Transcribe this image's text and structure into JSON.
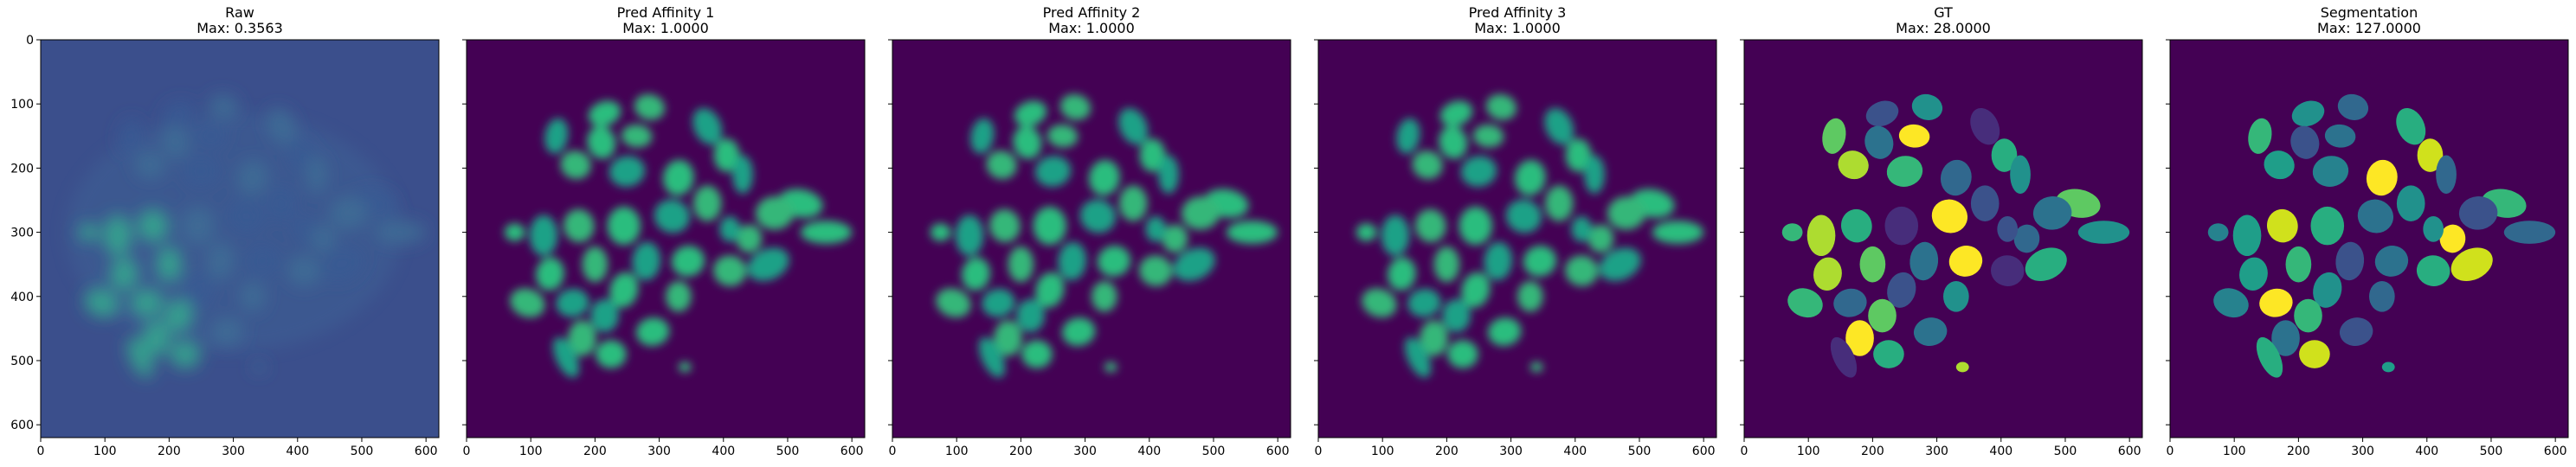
{
  "panels": [
    {
      "id": "raw",
      "title": "Raw",
      "subtitle": "Max: 0.3563",
      "kind": "raw",
      "background": "#3b4f8c",
      "colors": [
        "#3a5a93",
        "#3f6e96",
        "#33b08d",
        "#5ab88a"
      ]
    },
    {
      "id": "pred-affinity-1",
      "title": "Pred Affinity 1",
      "subtitle": "Max: 1.0000",
      "kind": "affinity",
      "background": "#440154",
      "colors": [
        "#2bbd7e",
        "#35b779",
        "#1fa187"
      ]
    },
    {
      "id": "pred-affinity-2",
      "title": "Pred Affinity 2",
      "subtitle": "Max: 1.0000",
      "kind": "affinity",
      "background": "#440154",
      "colors": [
        "#2bbd7e",
        "#35b779",
        "#1fa187"
      ]
    },
    {
      "id": "pred-affinity-3",
      "title": "Pred Affinity 3",
      "subtitle": "Max: 1.0000",
      "kind": "affinity",
      "background": "#440154",
      "colors": [
        "#2bbd7e",
        "#35b779",
        "#1fa187"
      ]
    },
    {
      "id": "gt",
      "title": "GT",
      "subtitle": "Max: 28.0000",
      "kind": "labels",
      "background": "#440154",
      "colors": [
        "#3b528b",
        "#21918c",
        "#5ec962",
        "#2c728e",
        "#fde725",
        "#472d7b",
        "#28ae80",
        "#addc30",
        "#35b779",
        "#31688e"
      ]
    },
    {
      "id": "segmentation",
      "title": "Segmentation",
      "subtitle": "Max: 127.0000",
      "kind": "labels",
      "background": "#440154",
      "colors": [
        "#21918c",
        "#31688e",
        "#35b779",
        "#3b528b",
        "#2c728e",
        "#28ae80",
        "#d0e11c",
        "#1f9e89",
        "#26828e",
        "#fde725"
      ]
    }
  ],
  "x_axis": {
    "min": 0,
    "max": 620,
    "ticks": [
      0,
      100,
      200,
      300,
      400,
      500,
      600
    ]
  },
  "y_axis": {
    "min": 0,
    "max": 620,
    "ticks": [
      0,
      100,
      200,
      300,
      400,
      500,
      600
    ]
  },
  "cells": [
    [
      215,
      115,
      26,
      19,
      -20
    ],
    [
      285,
      105,
      24,
      20,
      15
    ],
    [
      140,
      150,
      18,
      28,
      10
    ],
    [
      210,
      160,
      22,
      26,
      -15
    ],
    [
      265,
      150,
      24,
      18,
      5
    ],
    [
      375,
      135,
      21,
      30,
      -25
    ],
    [
      405,
      180,
      20,
      26,
      0
    ],
    [
      170,
      195,
      24,
      22,
      20
    ],
    [
      250,
      205,
      28,
      24,
      -10
    ],
    [
      330,
      215,
      24,
      28,
      10
    ],
    [
      375,
      255,
      22,
      28,
      0
    ],
    [
      430,
      210,
      16,
      30,
      0
    ],
    [
      520,
      255,
      35,
      22,
      10
    ],
    [
      480,
      270,
      30,
      26,
      -5
    ],
    [
      320,
      275,
      28,
      26,
      20
    ],
    [
      245,
      290,
      26,
      30,
      0
    ],
    [
      175,
      290,
      24,
      26,
      -10
    ],
    [
      120,
      305,
      22,
      32,
      0
    ],
    [
      75,
      300,
      16,
      14,
      0
    ],
    [
      440,
      310,
      20,
      22,
      5
    ],
    [
      410,
      295,
      16,
      20,
      0
    ],
    [
      560,
      300,
      40,
      18,
      0
    ],
    [
      200,
      350,
      20,
      28,
      0
    ],
    [
      280,
      345,
      22,
      30,
      5
    ],
    [
      345,
      345,
      26,
      24,
      -15
    ],
    [
      410,
      360,
      26,
      24,
      10
    ],
    [
      470,
      350,
      34,
      24,
      -25
    ],
    [
      130,
      365,
      22,
      26,
      10
    ],
    [
      95,
      410,
      28,
      22,
      20
    ],
    [
      165,
      410,
      26,
      22,
      -10
    ],
    [
      245,
      390,
      22,
      28,
      15
    ],
    [
      330,
      400,
      20,
      24,
      0
    ],
    [
      215,
      430,
      22,
      26,
      0
    ],
    [
      290,
      455,
      26,
      22,
      -10
    ],
    [
      180,
      465,
      22,
      28,
      0
    ],
    [
      155,
      495,
      16,
      34,
      -25
    ],
    [
      225,
      490,
      24,
      22,
      0
    ],
    [
      340,
      510,
      10,
      8,
      0
    ]
  ]
}
